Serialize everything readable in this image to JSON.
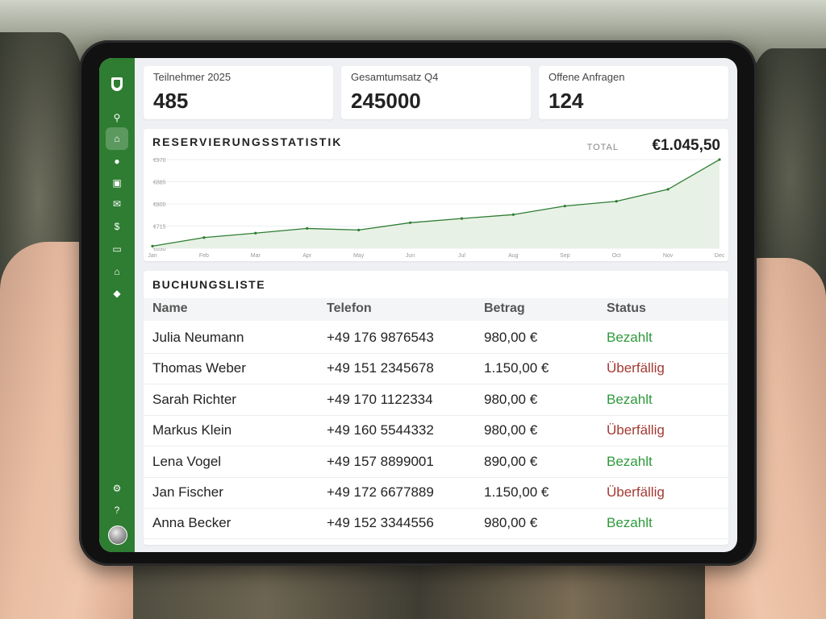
{
  "stats": [
    {
      "label": "Teilnehmer 2025",
      "value": "485"
    },
    {
      "label": "Gesamtumsatz Q4",
      "value": "245000"
    },
    {
      "label": "Offene Anfragen",
      "value": "124"
    }
  ],
  "sidebar": {
    "top_icon": "shield-logo-icon",
    "items": [
      {
        "icon": "search-icon",
        "glyph": "⚲"
      },
      {
        "icon": "home-icon",
        "glyph": "⌂",
        "active": true
      },
      {
        "icon": "user-icon",
        "glyph": "●"
      },
      {
        "icon": "contact-card-icon",
        "glyph": "▣"
      },
      {
        "icon": "mail-icon",
        "glyph": "✉"
      },
      {
        "icon": "invoice-icon",
        "glyph": "$"
      },
      {
        "icon": "cash-icon",
        "glyph": "▭"
      },
      {
        "icon": "bank-icon",
        "glyph": "⌂"
      },
      {
        "icon": "tag-icon",
        "glyph": "◆"
      }
    ],
    "bottom_items": [
      {
        "icon": "settings-icon",
        "glyph": "⚙"
      },
      {
        "icon": "help-icon",
        "glyph": "?"
      }
    ]
  },
  "chart": {
    "title": "RESERVIERUNGSSTATISTIK",
    "total_label": "TOTAL",
    "total_value": "€1.045,50"
  },
  "chart_data": {
    "type": "area",
    "categories": [
      "Jan",
      "Feb",
      "Mar",
      "Apr",
      "May",
      "Jun",
      "Jul",
      "Aug",
      "Sep",
      "Oct",
      "Nov",
      "Dec"
    ],
    "values": [
      638,
      671,
      688,
      706,
      700,
      728,
      744,
      759,
      792,
      810,
      856,
      970
    ],
    "yticks": [
      "€970",
      "€885",
      "€800",
      "€715",
      "€630"
    ],
    "ytick_values": [
      970,
      885,
      800,
      715,
      630
    ],
    "ylim": [
      630,
      970
    ],
    "grid": true,
    "color": "#2e7d32",
    "fill": "#e8f1e6"
  },
  "bookings": {
    "title": "BUCHUNGSLISTE",
    "columns": [
      "Name",
      "Telefon",
      "Betrag",
      "Status"
    ],
    "rows": [
      {
        "name": "Julia Neumann",
        "phone": "+49 176 9876543",
        "amount": "980,00 €",
        "status": "Bezahlt"
      },
      {
        "name": "Thomas Weber",
        "phone": "+49 151 2345678",
        "amount": "1.150,00 €",
        "status": "Überfällig"
      },
      {
        "name": "Sarah Richter",
        "phone": "+49 170 1122334",
        "amount": "980,00 €",
        "status": "Bezahlt"
      },
      {
        "name": "Markus Klein",
        "phone": "+49 160 5544332",
        "amount": "980,00 €",
        "status": "Überfällig"
      },
      {
        "name": "Lena Vogel",
        "phone": "+49 157 8899001",
        "amount": "890,00 €",
        "status": "Bezahlt"
      },
      {
        "name": "Jan Fischer",
        "phone": "+49 172 6677889",
        "amount": "1.150,00 €",
        "status": "Überfällig"
      },
      {
        "name": "Anna Becker",
        "phone": "+49 152 3344556",
        "amount": "980,00 €",
        "status": "Bezahlt"
      }
    ]
  },
  "colors": {
    "accent": "#2e7d32",
    "paid": "#2e9a3c",
    "overdue": "#a33a33"
  }
}
